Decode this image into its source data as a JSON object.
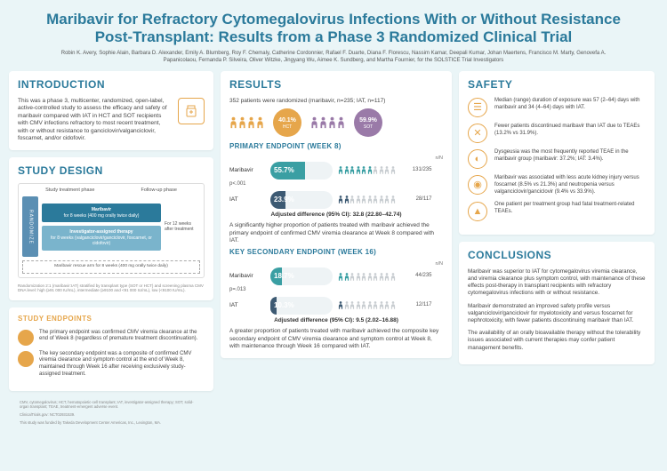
{
  "title": "Maribavir for Refractory Cytomegalovirus Infections With or Without Resistance Post-Transplant: Results from a Phase 3 Randomized Clinical Trial",
  "authors": "Robin K. Avery, Sophie Alain, Barbara D. Alexander, Emily A. Blumberg, Roy F. Chemaly, Catherine Cordonnier, Rafael F. Duarte, Diana F. Florescu, Nassim Kamar, Deepali Kumar, Johan Maertens, Francisco M. Marty, Genovefa A. Papanicolaou, Fernanda P. Silveira, Oliver Witzke, Jingyang Wu, Aimee K. Sundberg, and Martha Fournier, for the SOLSTICE Trial Investigators",
  "intro": {
    "heading": "INTRODUCTION",
    "text": "This was a phase 3, multicenter, randomized, open-label, active-controlled study to assess the efficacy and safety of maribavir compared with IAT in HCT and SOT recipients with CMV infections refractory to most recent treatment, with or without resistance to ganciclovir/valganciclovir, foscarnet, and/or cidofovir."
  },
  "design": {
    "heading": "STUDY DESIGN",
    "phase1": "Study treatment phase",
    "phase2": "Follow-up phase",
    "rand_label": "RANDOMIZE",
    "arm1_title": "Maribavir",
    "arm1_sub": "for 8 weeks (400 mg orally twice daily)",
    "arm2_title": "Investigator-assigned therapy",
    "arm2_sub": "for 8 weeks (valganciclovir/ganciclovir, foscarnet, or cidofovir)",
    "follow": "For 12 weeks after treatment",
    "rescue": "Maribavir rescue arm for 8 weeks (400 mg orally twice daily)",
    "note": "Randomization 2:1 (maribavir:IAT) stratified by transplant type (SOT or HCT) and screening plasma CMV DNA level: high (≥91 000 IU/mL), intermediate (≥9100 and <91 000 IU/mL), low (<9100 IU/mL)."
  },
  "endpoints": {
    "heading": "STUDY ENDPOINTS",
    "primary": "The primary endpoint was confirmed CMV viremia clearance at the end of Week 8 (regardless of premature treatment discontinuation).",
    "secondary": "The key secondary endpoint was a composite of confirmed CMV viremia clearance and symptom control at the end of Week 8, maintained through Week 16 after receiving exclusively study-assigned treatment."
  },
  "footer": {
    "abbr": "CMV, cytomegalovirus; HCT, hematopoietic-cell transplant; IAT, investigator-assigned therapy; SOT, solid-organ transplant; TEAE, treatment-emergent adverse event.",
    "trial": "ClinicalTrials.gov: NCT02931539.",
    "funding": "This study was funded by Takeda Development Center Americas, Inc., Lexington, MA."
  },
  "results": {
    "heading": "RESULTS",
    "summary": "352 patients were randomized (maribavir, n=235; IAT, n=117)",
    "hct_pct": "40.1%",
    "hct_lbl": "HCT",
    "sot_pct": "59.9%",
    "sot_lbl": "SOT",
    "hct_people_count": 4,
    "sot_people_count": 4,
    "colors": {
      "teal": "#3a9fa3",
      "navy": "#3d5a73",
      "orange": "#e6a64b",
      "purple": "#9a7aa8",
      "grey": "#c8cdd1"
    },
    "primary": {
      "heading": "PRIMARY ENDPOINT (WEEK 8)",
      "nn_hdr": "n/N",
      "mar_label": "Maribavir",
      "mar_pct": "55.7%",
      "mar_fill_pct": 55.7,
      "mar_nn": "131/235",
      "mar_people_filled": 6,
      "iat_label": "IAT",
      "iat_pct": "23.9%",
      "iat_fill_pct": 23.9,
      "iat_nn": "28/117",
      "iat_people_filled": 2,
      "people_total": 10,
      "pval": "p<.001",
      "adjusted": "Adjusted difference (95% CI): 32.8 (22.80–42.74)",
      "note": "A significantly higher proportion of patients treated with maribavir achieved the primary endpoint of confirmed CMV viremia clearance at Week 8 compared with IAT."
    },
    "secondary": {
      "heading": "KEY SECONDARY ENDPOINT (WEEK 16)",
      "mar_label": "Maribavir",
      "mar_pct": "18.7%",
      "mar_fill_pct": 18.7,
      "mar_nn": "44/235",
      "mar_people_filled": 2,
      "iat_label": "IAT",
      "iat_pct": "10.3%",
      "iat_fill_pct": 10.3,
      "iat_nn": "12/117",
      "iat_people_filled": 1,
      "people_total": 10,
      "pval": "p=.013",
      "adjusted": "Adjusted difference (95% CI): 9.5 (2.02–16.88)",
      "note": "A greater proportion of patients treated with maribavir achieved the composite key secondary endpoint of CMV viremia clearance and symptom control at Week 8, with maintenance through Week 16 compared with IAT."
    }
  },
  "safety": {
    "heading": "SAFETY",
    "items": [
      {
        "icon": "calendar-icon",
        "glyph": "☰",
        "text": "Median (range) duration of exposure was 57 (2–64) days with maribavir and 34 (4–64) days with IAT."
      },
      {
        "icon": "cross-circle-icon",
        "glyph": "✕",
        "text": "Fewer patients discontinued maribavir than IAT due to TEAEs (13.2% vs 31.9%)."
      },
      {
        "icon": "tongue-icon",
        "glyph": "◐",
        "text": "Dysgeusia was the most frequently reported TEAE in the maribavir group (maribavir: 37.2%; IAT: 3.4%)."
      },
      {
        "icon": "kidney-icon",
        "glyph": "◉",
        "text": "Maribavir was associated with less acute kidney injury versus foscarnet (8.5% vs 21.3%) and neutropenia versus valganciclovir/ganciclovir (9.4% vs 33.9%)."
      },
      {
        "icon": "warning-icon",
        "glyph": "▲",
        "text": "One patient per treatment group had fatal treatment-related TEAEs."
      }
    ]
  },
  "conclusions": {
    "heading": "CONCLUSIONS",
    "p1": "Maribavir was superior to IAT for cytomegalovirus viremia clearance, and viremia clearance plus symptom control, with maintenance of these effects post-therapy in transplant recipients with refractory cytomegalovirus infections with or without resistance.",
    "p2": "Maribavir demonstrated an improved safety profile versus valganciclovir/ganciclovir for myelotoxicity and versus foscarnet for nephrotoxicity, with fewer patients discontinuing maribavir than IAT.",
    "p3": "The availability of an orally bioavailable therapy without the tolerability issues associated with current therapies may confer patient management benefits."
  }
}
